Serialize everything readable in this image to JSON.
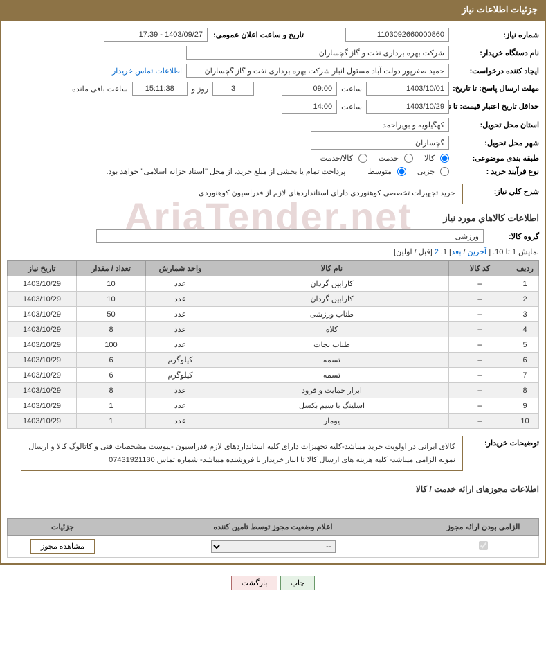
{
  "header": {
    "title": "جزئیات اطلاعات نیاز"
  },
  "need_number": {
    "label": "شماره نیاز:",
    "value": "1103092660000860"
  },
  "announce": {
    "label": "تاریخ و ساعت اعلان عمومی:",
    "value": "1403/09/27 - 17:39"
  },
  "buyer_org": {
    "label": "نام دستگاه خریدار:",
    "value": "شرکت بهره برداری نفت و گاز گچساران"
  },
  "requester": {
    "label": "ایجاد کننده درخواست:",
    "value": "حمید  صفرپور دولت آباد مسئول انبار شرکت بهره برداری نفت و گاز گچساران",
    "contact_link": "اطلاعات تماس خریدار"
  },
  "response_deadline": {
    "label": "مهلت ارسال پاسخ: تا تاریخ:",
    "date": "1403/10/01",
    "time_label": "ساعت",
    "time": "09:00",
    "days_remain": "3",
    "days_label": "روز و",
    "hms_remain": "15:11:38",
    "remain_suffix": "ساعت باقی مانده"
  },
  "price_validity": {
    "label": "حداقل تاریخ اعتبار قیمت: تا تاریخ:",
    "date": "1403/10/29",
    "time_label": "ساعت",
    "time": "14:00"
  },
  "delivery_province": {
    "label": "استان محل تحویل:",
    "value": "کهگیلویه و بویراحمد"
  },
  "delivery_city": {
    "label": "شهر محل تحویل:",
    "value": "گچساران"
  },
  "subject_class": {
    "label": "طبقه بندی موضوعی:",
    "opt1": "کالا",
    "opt2": "خدمت",
    "opt3": "کالا/خدمت"
  },
  "process_type": {
    "label": "نوع فرآیند خرید :",
    "opt1": "جزیی",
    "opt2": "متوسط",
    "note": "پرداخت تمام یا بخشی از مبلغ خرید، از محل \"اسناد خزانه اسلامی\" خواهد بود."
  },
  "general_desc": {
    "label": "شرح کلي نياز:",
    "value": "خرید تجهیزات تخصصی کوهنوردی دارای استانداردهای لازم از فدراسیون کوهنوردی"
  },
  "goods_section_title": "اطلاعات کالاهاي مورد نياز",
  "goods_group": {
    "label": "گروه کالا:",
    "value": "ورزشی"
  },
  "pager": {
    "prefix": "نمایش 1 تا 10. [ ",
    "last": "آخرین",
    "sep1": " / ",
    "next": "بعد",
    "mid": "] 1, ",
    "p2": "2",
    "suffix": " [قبل / اولین]"
  },
  "table": {
    "headers": {
      "row": "ردیف",
      "code": "کد کالا",
      "name": "نام کالا",
      "unit": "واحد شمارش",
      "qty": "تعداد / مقدار",
      "date": "تاریخ نیاز"
    },
    "rows": [
      {
        "n": "1",
        "code": "--",
        "name": "کارابین گردان",
        "unit": "عدد",
        "qty": "10",
        "date": "1403/10/29"
      },
      {
        "n": "2",
        "code": "--",
        "name": "کارابین گردان",
        "unit": "عدد",
        "qty": "10",
        "date": "1403/10/29"
      },
      {
        "n": "3",
        "code": "--",
        "name": "طناب ورزشی",
        "unit": "عدد",
        "qty": "50",
        "date": "1403/10/29"
      },
      {
        "n": "4",
        "code": "--",
        "name": "کلاه",
        "unit": "عدد",
        "qty": "8",
        "date": "1403/10/29"
      },
      {
        "n": "5",
        "code": "--",
        "name": "طناب نجات",
        "unit": "عدد",
        "qty": "100",
        "date": "1403/10/29"
      },
      {
        "n": "6",
        "code": "--",
        "name": "تسمه",
        "unit": "کیلوگرم",
        "qty": "6",
        "date": "1403/10/29"
      },
      {
        "n": "7",
        "code": "--",
        "name": "تسمه",
        "unit": "کیلوگرم",
        "qty": "6",
        "date": "1403/10/29"
      },
      {
        "n": "8",
        "code": "--",
        "name": "ابزار حمایت و فرود",
        "unit": "عدد",
        "qty": "8",
        "date": "1403/10/29"
      },
      {
        "n": "9",
        "code": "--",
        "name": "اسلینگ با سیم بکسل",
        "unit": "عدد",
        "qty": "1",
        "date": "1403/10/29"
      },
      {
        "n": "10",
        "code": "--",
        "name": "یومار",
        "unit": "عدد",
        "qty": "1",
        "date": "1403/10/29"
      }
    ]
  },
  "buyer_notes": {
    "label": "توضیحات خریدار:",
    "value": "کالای ایرانی در اولویت خرید میباشد-کلیه تجهیزات دارای کلیه استانداردهای لازم فدراسیون -پیوست مشخصات فنی و کاتالوگ کالا  و ارسال نمونه الزامی میباشد- کلیه هزینه های ارسال  کالا  تا انبار خریدار  با فروشنده میباشد- شماره تماس  07431921130"
  },
  "license_section_title": "اطلاعات مجوزهای ارائه خدمت / کالا",
  "license_table": {
    "headers": {
      "mandatory": "الزامی بودن ارائه مجوز",
      "status": "اعلام وضعیت مجوز توسط تامین کننده",
      "details": "جزئیات"
    },
    "status_placeholder": "--",
    "view_btn": "مشاهده مجوز"
  },
  "actions": {
    "print": "چاپ",
    "back": "بازگشت"
  },
  "watermark": "AriaTender.net",
  "colors": {
    "header_bg": "#8d7346",
    "border": "#8d7346",
    "th_bg": "#c0c0c0",
    "link": "#0066cc"
  }
}
